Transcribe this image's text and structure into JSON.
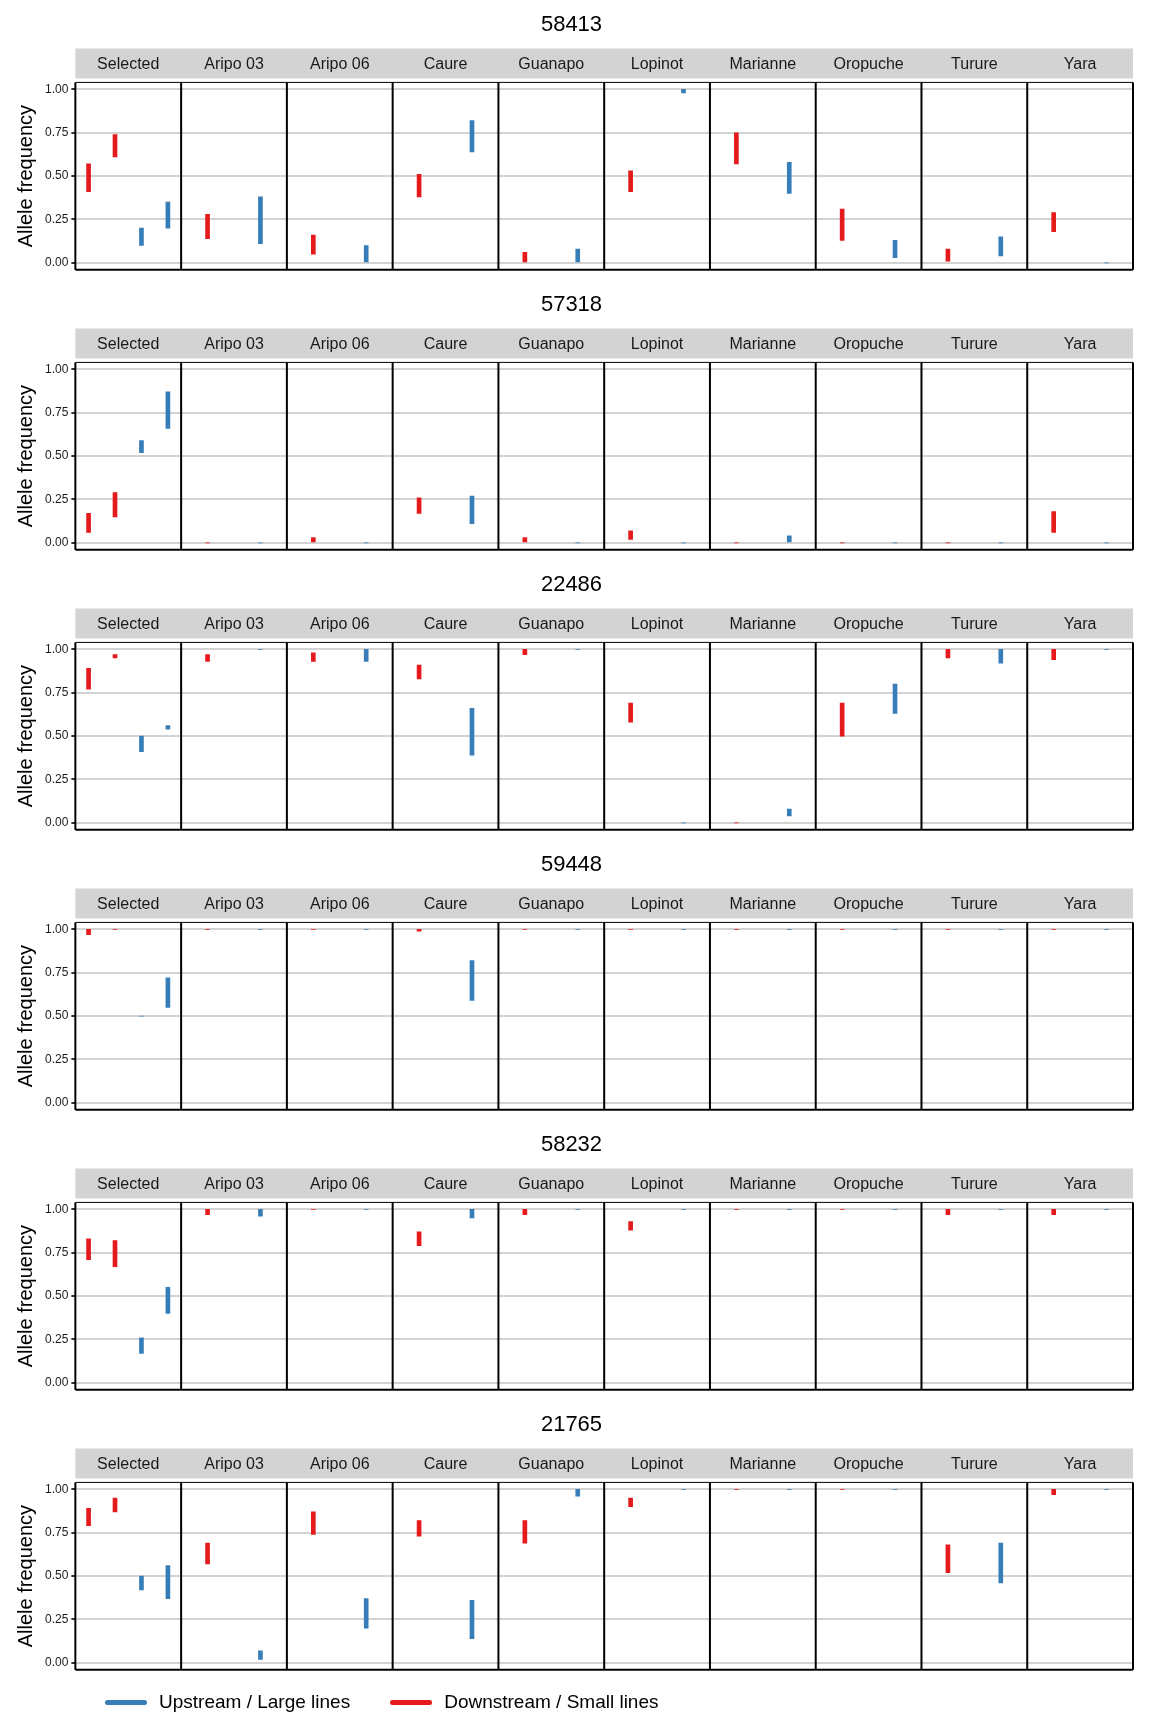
{
  "chart_data": [
    {
      "type": "bar",
      "title": "58413",
      "ylabel": "Allele frequency",
      "categories": [
        "Selected",
        "Aripo 03",
        "Aripo 06",
        "Caure",
        "Guanapo",
        "Lopinot",
        "Marianne",
        "Oropuche",
        "Turure",
        "Yara"
      ],
      "ylim": [
        -0.04,
        1.04
      ],
      "yticks": [
        {
          "value": 0,
          "label": "0.00"
        },
        {
          "value": 0.25,
          "label": "0.25"
        },
        {
          "value": 0.5,
          "label": "0.50"
        },
        {
          "value": 0.75,
          "label": "0.75"
        },
        {
          "value": 1,
          "label": "1.00"
        }
      ],
      "grid": "y",
      "legend": false,
      "series": [
        {
          "color": "#e41a1c",
          "base": [
            0.41,
            0.14,
            0.05,
            0.38,
            0.0,
            0.41,
            0.57,
            0.13,
            0.01,
            0.18
          ],
          "values": [
            0.16,
            0.14,
            0.11,
            0.13,
            0.06,
            0.12,
            0.18,
            0.18,
            0.07,
            0.11
          ]
        },
        {
          "color": "#e41a1c",
          "base": [
            0.61,
            null,
            null,
            null,
            null,
            null,
            null,
            null,
            null,
            null
          ],
          "values": [
            0.13,
            null,
            null,
            null,
            null,
            null,
            null,
            null,
            null,
            null
          ]
        },
        {
          "color": "#377eb8",
          "base": [
            0.1,
            0.11,
            0.0,
            0.64,
            0.0,
            0.98,
            0.4,
            0.03,
            0.04,
            0.0
          ],
          "values": [
            0.1,
            0.27,
            0.1,
            0.18,
            0.08,
            0.02,
            0.18,
            0.1,
            0.11,
            0
          ]
        },
        {
          "color": "#377eb8",
          "base": [
            0.2,
            null,
            null,
            null,
            null,
            null,
            null,
            null,
            null,
            null
          ],
          "values": [
            0.15,
            null,
            null,
            null,
            null,
            null,
            null,
            null,
            null,
            null
          ]
        }
      ]
    },
    {
      "type": "bar",
      "title": "57318",
      "ylabel": "Allele frequency",
      "categories": [
        "Selected",
        "Aripo 03",
        "Aripo 06",
        "Caure",
        "Guanapo",
        "Lopinot",
        "Marianne",
        "Oropuche",
        "Turure",
        "Yara"
      ],
      "ylim": [
        -0.04,
        1.04
      ],
      "yticks": [
        {
          "value": 0,
          "label": "0.00"
        },
        {
          "value": 0.25,
          "label": "0.25"
        },
        {
          "value": 0.5,
          "label": "0.50"
        },
        {
          "value": 0.75,
          "label": "0.75"
        },
        {
          "value": 1,
          "label": "1.00"
        }
      ],
      "grid": "y",
      "legend": false,
      "series": [
        {
          "color": "#e41a1c",
          "base": [
            0.06,
            0,
            0,
            0.17,
            0,
            0.02,
            0,
            0,
            0,
            0.06
          ],
          "values": [
            0.11,
            0,
            0.03,
            0.09,
            0.03,
            0.05,
            0,
            0,
            0,
            0.12
          ]
        },
        {
          "color": "#e41a1c",
          "base": [
            0.15,
            null,
            null,
            null,
            null,
            null,
            null,
            null,
            null,
            null
          ],
          "values": [
            0.14,
            null,
            null,
            null,
            null,
            null,
            null,
            null,
            null,
            null
          ]
        },
        {
          "color": "#377eb8",
          "base": [
            0.52,
            0,
            0,
            0.11,
            0,
            0,
            0,
            0,
            0,
            0
          ],
          "values": [
            0.07,
            0,
            0,
            0.16,
            0,
            0,
            0.04,
            0,
            0,
            0
          ]
        },
        {
          "color": "#377eb8",
          "base": [
            0.66,
            null,
            null,
            null,
            null,
            null,
            null,
            null,
            null,
            null
          ],
          "values": [
            0.21,
            null,
            null,
            null,
            null,
            null,
            null,
            null,
            null,
            null
          ]
        }
      ]
    },
    {
      "type": "bar",
      "title": "22486",
      "ylabel": "Allele frequency",
      "categories": [
        "Selected",
        "Aripo 03",
        "Aripo 06",
        "Caure",
        "Guanapo",
        "Lopinot",
        "Marianne",
        "Oropuche",
        "Turure",
        "Yara"
      ],
      "ylim": [
        -0.04,
        1.04
      ],
      "yticks": [
        {
          "value": 0,
          "label": "0.00"
        },
        {
          "value": 0.25,
          "label": "0.25"
        },
        {
          "value": 0.5,
          "label": "0.50"
        },
        {
          "value": 0.75,
          "label": "0.75"
        },
        {
          "value": 1,
          "label": "1.00"
        }
      ],
      "grid": "y",
      "legend": false,
      "series": [
        {
          "color": "#e41a1c",
          "base": [
            0.77,
            0.93,
            0.93,
            0.83,
            0.97,
            0.58,
            0,
            0.5,
            0.95,
            0.94
          ],
          "values": [
            0.12,
            0.04,
            0.05,
            0.08,
            0.03,
            0.11,
            0,
            0.19,
            0.05,
            0.06
          ]
        },
        {
          "color": "#e41a1c",
          "base": [
            0.95,
            null,
            null,
            null,
            null,
            null,
            null,
            null,
            null,
            null
          ],
          "values": [
            0.02,
            null,
            null,
            null,
            null,
            null,
            null,
            null,
            null,
            null
          ]
        },
        {
          "color": "#377eb8",
          "base": [
            0.41,
            1,
            0.93,
            0.39,
            1,
            0,
            0.04,
            0.63,
            0.92,
            1
          ],
          "values": [
            0.09,
            0,
            0.07,
            0.27,
            0,
            0,
            0.04,
            0.17,
            0.08,
            0
          ]
        },
        {
          "color": "#377eb8",
          "base": [
            0.54,
            null,
            null,
            null,
            null,
            null,
            null,
            null,
            null,
            null
          ],
          "values": [
            0.02,
            null,
            null,
            null,
            null,
            null,
            null,
            null,
            null,
            null
          ]
        }
      ]
    },
    {
      "type": "bar",
      "title": "59448",
      "ylabel": "Allele frequency",
      "categories": [
        "Selected",
        "Aripo 03",
        "Aripo 06",
        "Caure",
        "Guanapo",
        "Lopinot",
        "Marianne",
        "Oropuche",
        "Turure",
        "Yara"
      ],
      "ylim": [
        -0.04,
        1.04
      ],
      "yticks": [
        {
          "value": 0,
          "label": "0.00"
        },
        {
          "value": 0.25,
          "label": "0.25"
        },
        {
          "value": 0.5,
          "label": "0.50"
        },
        {
          "value": 0.75,
          "label": "0.75"
        },
        {
          "value": 1,
          "label": "1.00"
        }
      ],
      "grid": "y",
      "legend": false,
      "series": [
        {
          "color": "#e41a1c",
          "base": [
            0.97,
            1,
            1,
            0.99,
            1,
            1,
            1,
            1,
            1,
            1
          ],
          "values": [
            0.03,
            0,
            0,
            0.01,
            0,
            0,
            0,
            0,
            0,
            0
          ]
        },
        {
          "color": "#e41a1c",
          "base": [
            1,
            null,
            null,
            null,
            null,
            null,
            null,
            null,
            null,
            null
          ],
          "values": [
            0,
            null,
            null,
            null,
            null,
            null,
            null,
            null,
            null,
            null
          ]
        },
        {
          "color": "#377eb8",
          "base": [
            0.5,
            1,
            1,
            0.59,
            1,
            1,
            1,
            1,
            1,
            1
          ],
          "values": [
            0,
            0,
            0,
            0.23,
            0,
            0,
            0,
            0,
            0,
            0
          ]
        },
        {
          "color": "#377eb8",
          "base": [
            0.55,
            null,
            null,
            null,
            null,
            null,
            null,
            null,
            null,
            null
          ],
          "values": [
            0.17,
            null,
            null,
            null,
            null,
            null,
            null,
            null,
            null,
            null
          ]
        }
      ]
    },
    {
      "type": "bar",
      "title": "58232",
      "ylabel": "Allele frequency",
      "categories": [
        "Selected",
        "Aripo 03",
        "Aripo 06",
        "Caure",
        "Guanapo",
        "Lopinot",
        "Marianne",
        "Oropuche",
        "Turure",
        "Yara"
      ],
      "ylim": [
        -0.04,
        1.04
      ],
      "yticks": [
        {
          "value": 0,
          "label": "0.00"
        },
        {
          "value": 0.25,
          "label": "0.25"
        },
        {
          "value": 0.5,
          "label": "0.50"
        },
        {
          "value": 0.75,
          "label": "0.75"
        },
        {
          "value": 1,
          "label": "1.00"
        }
      ],
      "grid": "y",
      "legend": false,
      "series": [
        {
          "color": "#e41a1c",
          "base": [
            0.71,
            0.97,
            1,
            0.79,
            0.97,
            0.88,
            1,
            1,
            0.97,
            0.97
          ],
          "values": [
            0.12,
            0.03,
            0,
            0.08,
            0.03,
            0.05,
            0,
            0,
            0.03,
            0.03
          ]
        },
        {
          "color": "#e41a1c",
          "base": [
            0.67,
            null,
            null,
            null,
            null,
            null,
            null,
            null,
            null,
            null
          ],
          "values": [
            0.15,
            null,
            null,
            null,
            null,
            null,
            null,
            null,
            null,
            null
          ]
        },
        {
          "color": "#377eb8",
          "base": [
            0.17,
            0.96,
            1,
            0.95,
            1,
            1,
            1,
            1,
            1,
            1
          ],
          "values": [
            0.09,
            0.04,
            0,
            0.05,
            0,
            0,
            0,
            0,
            0,
            0
          ]
        },
        {
          "color": "#377eb8",
          "base": [
            0.4,
            null,
            null,
            null,
            null,
            null,
            null,
            null,
            null,
            null
          ],
          "values": [
            0.15,
            null,
            null,
            null,
            null,
            null,
            null,
            null,
            null,
            null
          ]
        }
      ]
    },
    {
      "type": "bar",
      "title": "21765",
      "ylabel": "Allele frequency",
      "categories": [
        "Selected",
        "Aripo 03",
        "Aripo 06",
        "Caure",
        "Guanapo",
        "Lopinot",
        "Marianne",
        "Oropuche",
        "Turure",
        "Yara"
      ],
      "ylim": [
        -0.04,
        1.04
      ],
      "yticks": [
        {
          "value": 0,
          "label": "0.00"
        },
        {
          "value": 0.25,
          "label": "0.25"
        },
        {
          "value": 0.5,
          "label": "0.50"
        },
        {
          "value": 0.75,
          "label": "0.75"
        },
        {
          "value": 1,
          "label": "1.00"
        }
      ],
      "grid": "y",
      "legend": "bottom",
      "series": [
        {
          "name": "Downstream / Small lines",
          "color": "#e41a1c",
          "base": [
            0.79,
            0.57,
            0.74,
            0.73,
            0.69,
            0.9,
            1,
            1,
            0.52,
            0.97
          ],
          "values": [
            0.1,
            0.12,
            0.13,
            0.09,
            0.13,
            0.05,
            0,
            0,
            0.16,
            0.03
          ]
        },
        {
          "color": "#e41a1c",
          "base": [
            0.87,
            null,
            null,
            null,
            null,
            null,
            null,
            null,
            null,
            null
          ],
          "values": [
            0.08,
            null,
            null,
            null,
            null,
            null,
            null,
            null,
            null,
            null
          ]
        },
        {
          "name": "Upstream / Large lines",
          "color": "#377eb8",
          "base": [
            0.42,
            0.02,
            0.2,
            0.14,
            0.96,
            1,
            1,
            1,
            0.46,
            1
          ],
          "values": [
            0.08,
            0.05,
            0.17,
            0.22,
            0.04,
            0,
            0,
            0,
            0.23,
            0
          ]
        },
        {
          "color": "#377eb8",
          "base": [
            0.37,
            null,
            null,
            null,
            null,
            null,
            null,
            null,
            null,
            null
          ],
          "values": [
            0.19,
            null,
            null,
            null,
            null,
            null,
            null,
            null,
            null,
            null
          ]
        }
      ]
    }
  ]
}
